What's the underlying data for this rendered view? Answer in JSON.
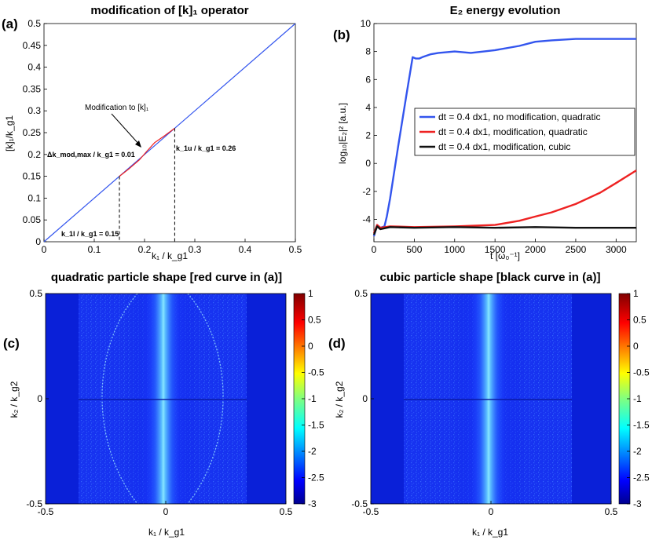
{
  "chart_data": [
    {
      "panel": "(a)",
      "type": "line",
      "title": "modification of [k]₁ operator",
      "xlabel": "k₁ / k_g1",
      "ylabel": "[k]₁/k_g1",
      "xlim": [
        0,
        0.5
      ],
      "ylim": [
        0,
        0.5
      ],
      "xticks": [
        "0",
        "0.1",
        "0.2",
        "0.3",
        "0.4",
        "0.5"
      ],
      "yticks": [
        "0",
        "0.05",
        "0.1",
        "0.15",
        "0.2",
        "0.25",
        "0.3",
        "0.35",
        "0.4",
        "0.45",
        "0.5"
      ],
      "series": [
        {
          "name": "identity",
          "color": "#3355ee",
          "x": [
            0,
            0.5
          ],
          "y": [
            0,
            0.5
          ]
        },
        {
          "name": "modified",
          "color": "#ee2222",
          "x": [
            0.15,
            0.17,
            0.19,
            0.205,
            0.22,
            0.24,
            0.26
          ],
          "y": [
            0.15,
            0.168,
            0.188,
            0.208,
            0.227,
            0.243,
            0.26
          ]
        }
      ],
      "vlines": [
        0.15,
        0.26
      ],
      "annotations": {
        "modification": "Modification to [k]₁",
        "dk": "Δk_mod,max / k_g1 = 0.01",
        "k1u": "k_1u / k_g1 = 0.26",
        "k1l": "k_1l / k_g1 = 0.15"
      }
    },
    {
      "panel": "(b)",
      "type": "line",
      "title": "E₂ energy evolution",
      "xlabel": "t [ω₀⁻¹]",
      "ylabel": "log₁₀|E₂|² [a.u.]",
      "xlim": [
        0,
        3250
      ],
      "ylim": [
        -5.6,
        10
      ],
      "xticks": [
        "0",
        "500",
        "1000",
        "1500",
        "2000",
        "2500",
        "3000"
      ],
      "yticks": [
        "-4",
        "-2",
        "0",
        "2",
        "4",
        "6",
        "8",
        "10"
      ],
      "series": [
        {
          "name": "dt = 0.4 dx1, no modification, quadratic",
          "color": "#3355ee",
          "x": [
            0,
            40,
            80,
            130,
            160,
            200,
            300,
            400,
            480,
            520,
            560,
            600,
            700,
            800,
            1000,
            1200,
            1500,
            1800,
            2000,
            2200,
            2500,
            3000,
            3250
          ],
          "y": [
            -5.2,
            -4.4,
            -4.6,
            -4.5,
            -3.8,
            -2.5,
            1.2,
            4.8,
            7.6,
            7.5,
            7.5,
            7.6,
            7.8,
            7.9,
            8.0,
            7.9,
            8.1,
            8.4,
            8.7,
            8.8,
            8.9,
            8.9,
            8.9
          ]
        },
        {
          "name": "dt = 0.4 dx1, modification, quadratic",
          "color": "#ee2222",
          "x": [
            0,
            40,
            80,
            200,
            500,
            1000,
            1500,
            1800,
            2000,
            2200,
            2500,
            2800,
            3000,
            3250
          ],
          "y": [
            -5.0,
            -4.4,
            -4.6,
            -4.5,
            -4.55,
            -4.5,
            -4.4,
            -4.1,
            -3.8,
            -3.5,
            -2.9,
            -2.1,
            -1.4,
            -0.5
          ]
        },
        {
          "name": "dt = 0.4 dx1, modification, cubic",
          "color": "#111111",
          "x": [
            0,
            40,
            80,
            200,
            500,
            1000,
            1500,
            2000,
            2500,
            3000,
            3250
          ],
          "y": [
            -5.1,
            -4.5,
            -4.7,
            -4.55,
            -4.6,
            -4.55,
            -4.6,
            -4.55,
            -4.6,
            -4.6,
            -4.6
          ]
        }
      ]
    },
    {
      "panel": "(c)",
      "type": "heatmap",
      "title": "quadratic particle shape [red curve in (a)]",
      "xlabel": "k₁ / k_g1",
      "ylabel": "k₂ / k_g2",
      "xlim": [
        -0.5,
        0.5
      ],
      "ylim": [
        -0.5,
        0.5
      ],
      "xticks": [
        "-0.5",
        "0",
        "0.5"
      ],
      "yticks": [
        "0.5",
        "0",
        "-0.5"
      ],
      "colorbar_ticks": [
        "1",
        "0.5",
        "0",
        "-0.5",
        "-1",
        "-1.5",
        "-2",
        "-2.5",
        "-3"
      ],
      "clim": [
        -3,
        1
      ]
    },
    {
      "panel": "(d)",
      "type": "heatmap",
      "title": "cubic particle shape [black curve in (a)]",
      "xlabel": "k₁ / k_g1",
      "ylabel": "k₂ / k_g2",
      "xlim": [
        -0.5,
        0.5
      ],
      "ylim": [
        -0.5,
        0.5
      ],
      "xticks": [
        "-0.5",
        "0",
        "0.5"
      ],
      "yticks": [
        "0.5",
        "0",
        "-0.5"
      ],
      "colorbar_ticks": [
        "1",
        "0.5",
        "0",
        "-0.5",
        "-1",
        "-1.5",
        "-2",
        "-2.5",
        "-3"
      ],
      "clim": [
        -3,
        1
      ]
    }
  ]
}
